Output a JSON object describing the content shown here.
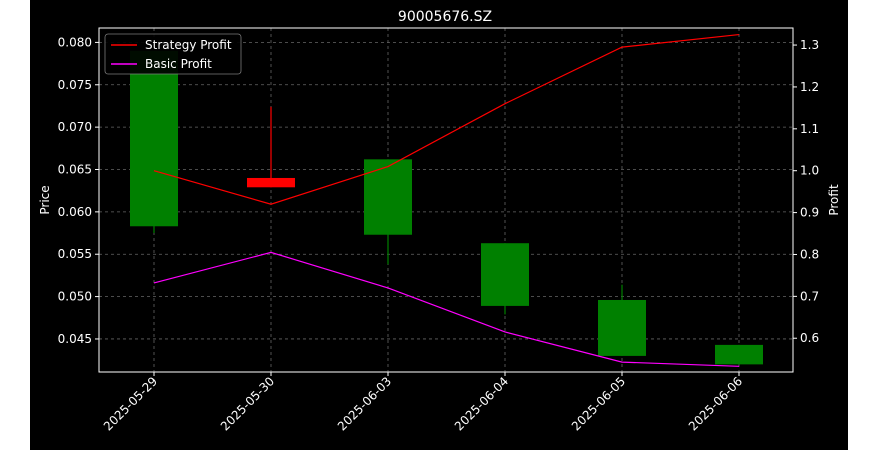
{
  "chart_data": {
    "type": "candlestick+line",
    "title": "90005676.SZ",
    "xlabel": "",
    "ylabel_left": "Price",
    "ylabel_right": "Profit",
    "grid": true,
    "legend_position": "top-left",
    "background": "#000000",
    "categories": [
      "2025-05-29",
      "2025-05-30",
      "2025-06-03",
      "2025-06-04",
      "2025-06-05",
      "2025-06-06"
    ],
    "y_left": {
      "ticks": [
        "0.045",
        "0.050",
        "0.055",
        "0.060",
        "0.065",
        "0.070",
        "0.075",
        "0.080"
      ],
      "range": [
        0.0411,
        0.0817
      ]
    },
    "y_right": {
      "ticks": [
        "0.6",
        "0.7",
        "0.8",
        "0.9",
        "1.0",
        "1.1",
        "1.2",
        "1.3"
      ],
      "range": [
        0.5194,
        1.3407
      ]
    },
    "candles": [
      {
        "date": "2025-05-29",
        "open": 0.0583,
        "close": 0.079,
        "low": 0.0575,
        "high": 0.079,
        "color": "#008000"
      },
      {
        "date": "2025-05-30",
        "open": 0.064,
        "close": 0.0629,
        "low": 0.0629,
        "high": 0.0724,
        "color": "#ff0000"
      },
      {
        "date": "2025-06-03",
        "open": 0.0573,
        "close": 0.0662,
        "low": 0.0538,
        "high": 0.0662,
        "color": "#008000"
      },
      {
        "date": "2025-06-04",
        "open": 0.0489,
        "close": 0.0563,
        "low": 0.0479,
        "high": 0.0563,
        "color": "#008000"
      },
      {
        "date": "2025-06-05",
        "open": 0.043,
        "close": 0.0496,
        "low": 0.043,
        "high": 0.0514,
        "color": "#008000"
      },
      {
        "date": "2025-06-06",
        "open": 0.042,
        "close": 0.0443,
        "low": 0.042,
        "high": 0.0443,
        "color": "#008000"
      }
    ],
    "series": [
      {
        "name": "Strategy Profit",
        "color": "#ff0000",
        "axis": "right",
        "values": [
          1.0,
          0.92,
          1.01,
          1.16,
          1.295,
          1.325
        ]
      },
      {
        "name": "Basic Profit",
        "color": "#ff00ff",
        "axis": "right",
        "values": [
          0.732,
          0.805,
          0.72,
          0.615,
          0.543,
          0.533
        ]
      }
    ]
  }
}
